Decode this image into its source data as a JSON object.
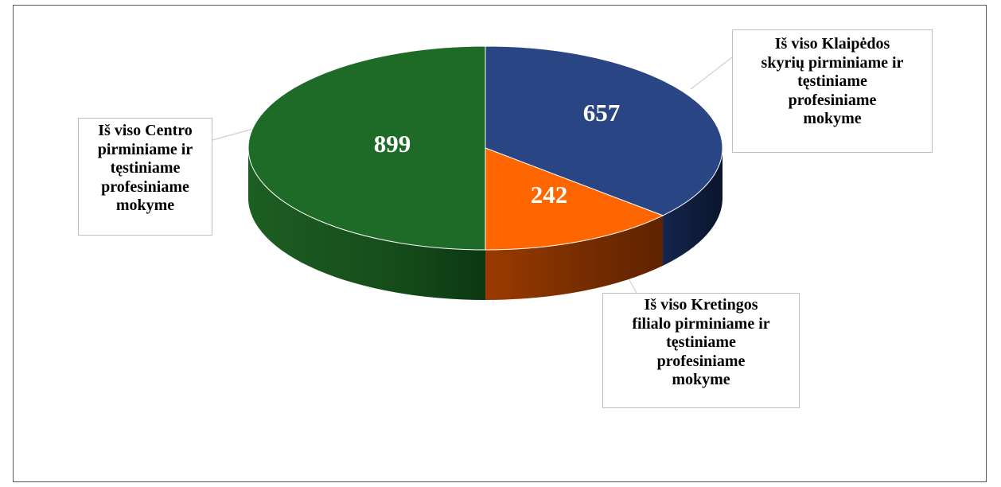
{
  "chart_data": {
    "type": "pie",
    "labels": [
      "Iš viso Klaipėdos skyrių pirminiame ir tęstiniame profesiniame mokyme",
      "Iš viso Kretingos filialo pirminiame ir tęstiniame profesiniame mokyme",
      "Iš viso Centro pirminiame ir tęstiniame profesiniame mokyme"
    ],
    "label_lines": [
      [
        "Iš viso Klaipėdos",
        "skyrių pirminiame ir",
        "tęstiniame",
        "profesiniame",
        "mokyme"
      ],
      [
        "Iš viso Kretingos",
        "filialo pirminiame ir",
        "tęstiniame",
        "profesiniame",
        "mokyme"
      ],
      [
        "Iš viso Centro",
        "pirminiame ir",
        "tęstiniame",
        "profesiniame",
        "mokyme"
      ]
    ],
    "values": [
      657,
      242,
      899
    ],
    "value_labels": [
      "657",
      "242",
      "899"
    ],
    "colors": [
      "#2a4584",
      "#ff6600",
      "#1e6b27"
    ],
    "side_colors": [
      "#0e1a38",
      "#7a2e00",
      "#0d3d14"
    ],
    "style": "3d-pie",
    "legend": "none",
    "data_labels": "inside",
    "title": ""
  }
}
